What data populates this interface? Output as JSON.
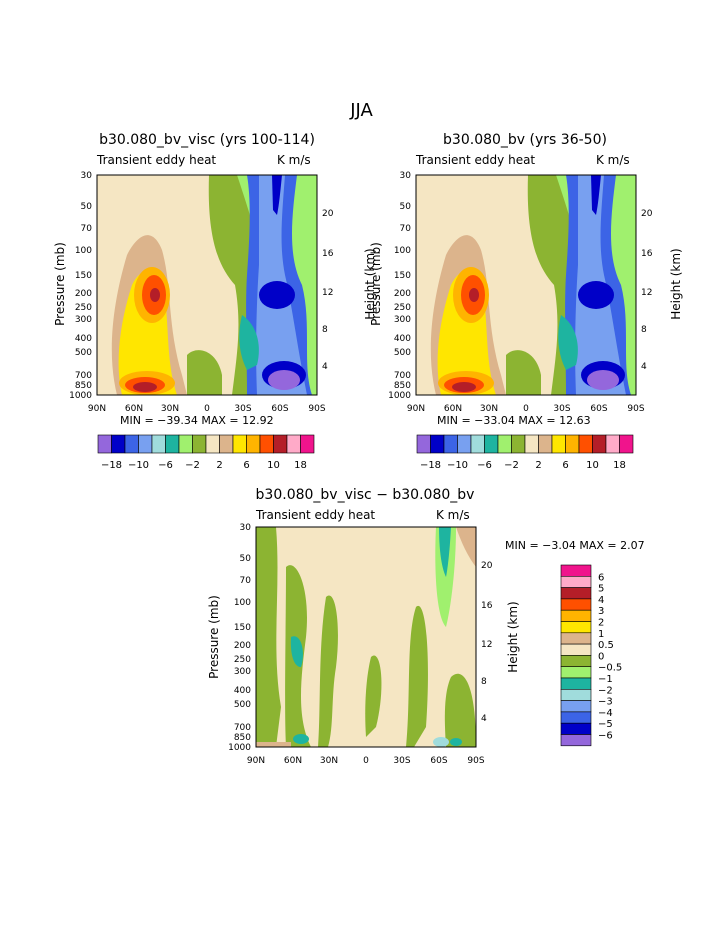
{
  "figure": {
    "season_title": "JJA"
  },
  "palette": {
    "main": [
      "#9467dc",
      "#0000c8",
      "#3c64e6",
      "#78a0f0",
      "#a0dcdc",
      "#1eb4a0",
      "#a0f06e",
      "#8cb432",
      "#f5e6c3",
      "#dcb48c",
      "#ffe600",
      "#ffb400",
      "#ff5000",
      "#b41e28",
      "#ffaac8",
      "#f0148c"
    ],
    "diff": [
      "#9467dc",
      "#0000c8",
      "#3c64e6",
      "#78a0f0",
      "#a0dcdc",
      "#1eb4a0",
      "#a0f06e",
      "#8cb432",
      "#f5e6c3",
      "#dcb48c",
      "#ffe600",
      "#ffb400",
      "#ff5000",
      "#b41e28",
      "#ffaac8",
      "#f0148c"
    ]
  },
  "panels": [
    {
      "title": "b30.080_bv_visc (yrs 100-114)",
      "left_subtitle": "Transient eddy heat",
      "right_subtitle": "K m/s",
      "min_max": "MIN = −39.34   MAX =   12.92",
      "colorbar_labels": [
        "−18",
        "−10",
        "−6",
        "−2",
        "2",
        "6",
        "10",
        "18"
      ]
    },
    {
      "title": "b30.080_bv (yrs 36-50)",
      "left_subtitle": "Transient eddy heat",
      "right_subtitle": "K m/s",
      "min_max": "MIN = −33.04   MAX =   12.63",
      "colorbar_labels": [
        "−18",
        "−10",
        "−6",
        "−2",
        "2",
        "6",
        "10",
        "18"
      ]
    },
    {
      "title": "b30.080_bv_visc − b30.080_bv",
      "left_subtitle": "Transient eddy heat",
      "right_subtitle": "K m/s",
      "min_max": "MIN =   −3.04   MAX =    2.07",
      "colorbar_labels": [
        "6",
        "5",
        "4",
        "3",
        "2",
        "1",
        "0.5",
        "0",
        "−0.5",
        "−1",
        "−2",
        "−3",
        "−4",
        "−5",
        "−6"
      ]
    }
  ],
  "axes": {
    "ylabel": "Pressure (mb)",
    "ylabel_right": "Height (km)",
    "pressure_ticks": [
      "30",
      "50",
      "70",
      "100",
      "150",
      "200",
      "250",
      "300",
      "400",
      "500",
      "700",
      "850",
      "1000"
    ],
    "height_ticks": [
      "20",
      "16",
      "12",
      "8",
      "4"
    ],
    "lat_ticks": [
      "90N",
      "60N",
      "30N",
      "0",
      "30S",
      "60S",
      "90S"
    ]
  },
  "chart_data": [
    {
      "type": "heatmap",
      "title": "b30.080_bv_visc (yrs 100-114)",
      "subtitle": "Transient eddy heat",
      "units": "K m/s",
      "x_axis": "latitude",
      "xlim": [
        "90N",
        "90S"
      ],
      "y_axis": "pressure (mb), log scale",
      "ylim": [
        1000,
        30
      ],
      "min": -39.34,
      "max": 12.92,
      "contour_levels": [
        -18,
        -16,
        -14,
        -12,
        -10,
        -8,
        -6,
        -4,
        -2,
        0,
        2,
        4,
        6,
        8,
        10,
        12,
        14,
        16,
        18
      ],
      "features": [
        {
          "name": "NH positive maximum",
          "lat": "50N",
          "pressure_mb": 200,
          "approx_value": 12
        },
        {
          "name": "NH surface positive",
          "lat": "60N",
          "pressure_mb": 900,
          "approx_value": 12
        },
        {
          "name": "SH negative minimum (upper)",
          "lat": "55S",
          "pressure_mb": 200,
          "approx_value": -16
        },
        {
          "name": "SH negative minimum (surface)",
          "lat": "60S",
          "pressure_mb": 850,
          "approx_value": -18
        }
      ]
    },
    {
      "type": "heatmap",
      "title": "b30.080_bv (yrs 36-50)",
      "subtitle": "Transient eddy heat",
      "units": "K m/s",
      "x_axis": "latitude",
      "xlim": [
        "90N",
        "90S"
      ],
      "y_axis": "pressure (mb), log scale",
      "ylim": [
        1000,
        30
      ],
      "min": -33.04,
      "max": 12.63,
      "contour_levels": [
        -18,
        -16,
        -14,
        -12,
        -10,
        -8,
        -6,
        -4,
        -2,
        0,
        2,
        4,
        6,
        8,
        10,
        12,
        14,
        16,
        18
      ],
      "features": [
        {
          "name": "NH positive maximum",
          "lat": "50N",
          "pressure_mb": 200,
          "approx_value": 12
        },
        {
          "name": "NH surface positive",
          "lat": "60N",
          "pressure_mb": 900,
          "approx_value": 12
        },
        {
          "name": "SH negative minimum (upper)",
          "lat": "55S",
          "pressure_mb": 200,
          "approx_value": -16
        },
        {
          "name": "SH negative minimum (surface)",
          "lat": "60S",
          "pressure_mb": 850,
          "approx_value": -18
        }
      ]
    },
    {
      "type": "heatmap",
      "title": "b30.080_bv_visc − b30.080_bv",
      "subtitle": "Transient eddy heat",
      "units": "K m/s",
      "x_axis": "latitude",
      "xlim": [
        "90N",
        "90S"
      ],
      "y_axis": "pressure (mb), log scale",
      "ylim": [
        1000,
        30
      ],
      "min": -3.04,
      "max": 2.07,
      "contour_levels": [
        -6,
        -5,
        -4,
        -3,
        -2,
        -1,
        -0.5,
        0,
        0.5,
        1,
        2,
        3,
        4,
        5,
        6
      ],
      "features": [
        {
          "name": "negative anomaly",
          "lat": "55N",
          "pressure_mb": 200,
          "approx_value": -1
        },
        {
          "name": "negative anomaly upper",
          "lat": "60S",
          "pressure_mb": 40,
          "approx_value": -1
        },
        {
          "name": "surface dipole",
          "lat": "70S",
          "pressure_mb": 950,
          "approx_value": -2
        }
      ]
    }
  ]
}
